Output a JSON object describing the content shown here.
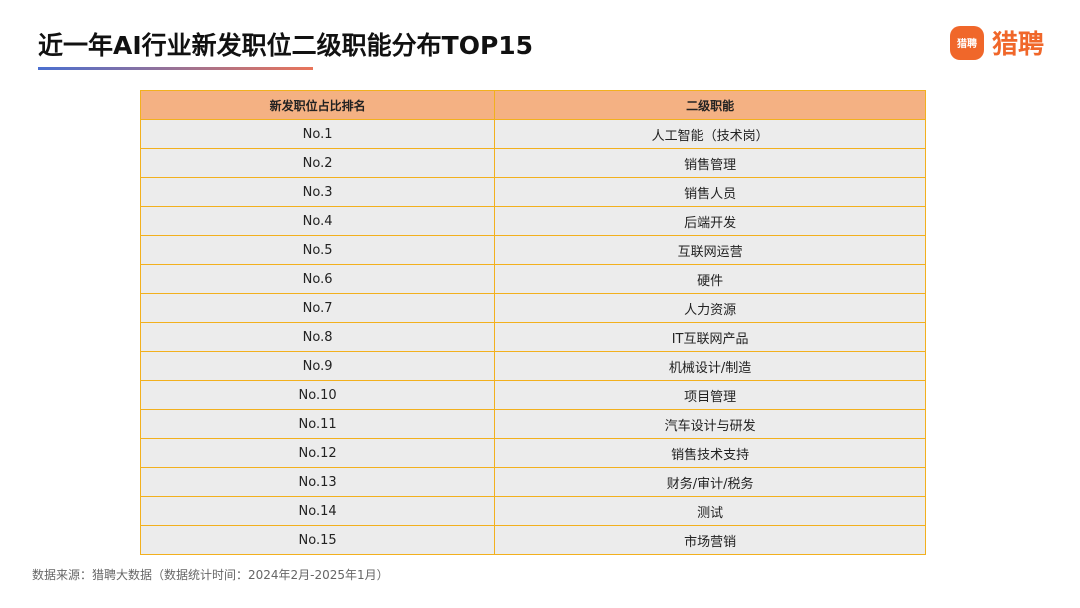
{
  "header": {
    "title": "近一年AI行业新发职位二级职能分布TOP15",
    "logo": "猎聘",
    "logo_icon": "猎聘"
  },
  "table": {
    "columns": [
      "新发职位占比排名",
      "二级职能"
    ],
    "rows": [
      [
        "No.1",
        "人工智能（技术岗）"
      ],
      [
        "No.2",
        "销售管理"
      ],
      [
        "No.3",
        "销售人员"
      ],
      [
        "No.4",
        "后端开发"
      ],
      [
        "No.5",
        "互联网运营"
      ],
      [
        "No.6",
        "硬件"
      ],
      [
        "No.7",
        "人力资源"
      ],
      [
        "No.8",
        "IT互联网产品"
      ],
      [
        "No.9",
        "机械设计/制造"
      ],
      [
        "No.10",
        "项目管理"
      ],
      [
        "No.11",
        "汽车设计与研发"
      ],
      [
        "No.12",
        "销售技术支持"
      ],
      [
        "No.13",
        "财务/审计/税务"
      ],
      [
        "No.14",
        "测试"
      ],
      [
        "No.15",
        "市场营销"
      ]
    ]
  },
  "footer": {
    "source": "数据来源：猎聘大数据（数据统计时间：2024年2月-2025年1月）"
  }
}
